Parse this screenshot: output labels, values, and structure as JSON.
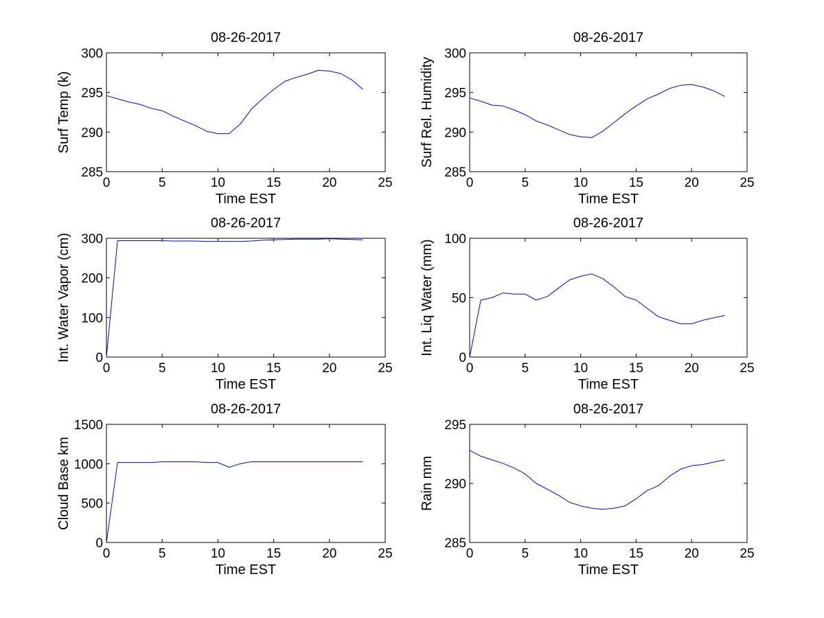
{
  "chart_data": [
    {
      "type": "line",
      "title": "08-26-2017",
      "xlabel": "Time EST",
      "ylabel": "Surf Temp (k)",
      "xlim": [
        0,
        25
      ],
      "ylim": [
        285,
        300
      ],
      "xticks": [
        0,
        5,
        10,
        15,
        20,
        25
      ],
      "yticks": [
        285,
        290,
        295,
        300
      ],
      "grid": false,
      "series": [
        {
          "color": "#0000ff",
          "x": [
            0,
            1,
            2,
            3,
            4,
            5,
            6,
            7,
            8,
            9,
            10,
            11,
            12,
            13,
            14,
            15,
            16,
            17,
            18,
            19,
            20,
            21,
            22,
            23
          ],
          "y": [
            294.6,
            294.2,
            293.8,
            293.5,
            293.0,
            292.7,
            292.0,
            291.4,
            290.8,
            290.1,
            289.8,
            289.8,
            291.0,
            292.9,
            294.2,
            295.4,
            296.4,
            296.9,
            297.3,
            297.8,
            297.7,
            297.4,
            296.6,
            295.4
          ]
        }
      ]
    },
    {
      "type": "line",
      "title": "08-26-2017",
      "xlabel": "Time EST",
      "ylabel": "Surf Rel. Humidity",
      "xlim": [
        0,
        25
      ],
      "ylim": [
        285,
        300
      ],
      "xticks": [
        0,
        5,
        10,
        15,
        20,
        25
      ],
      "yticks": [
        285,
        290,
        295,
        300
      ],
      "grid": false,
      "series": [
        {
          "color": "#0000ff",
          "x": [
            0,
            1,
            2,
            3,
            4,
            5,
            6,
            7,
            8,
            9,
            10,
            11,
            12,
            13,
            14,
            15,
            16,
            17,
            18,
            19,
            20,
            21,
            22,
            23
          ],
          "y": [
            294.3,
            293.9,
            293.4,
            293.3,
            292.8,
            292.2,
            291.4,
            290.9,
            290.3,
            289.7,
            289.4,
            289.3,
            290.1,
            291.2,
            292.3,
            293.3,
            294.2,
            294.8,
            295.5,
            295.9,
            296.0,
            295.7,
            295.2,
            294.5
          ]
        }
      ]
    },
    {
      "type": "line",
      "title": "08-26-2017",
      "xlabel": "Time EST",
      "ylabel": "Int. Water Vapor (cm)",
      "xlim": [
        0,
        25
      ],
      "ylim": [
        0,
        300
      ],
      "xticks": [
        0,
        5,
        10,
        15,
        20,
        25
      ],
      "yticks": [
        0,
        100,
        200,
        300
      ],
      "grid": false,
      "series": [
        {
          "color": "#0000ff",
          "x": [
            0,
            1,
            2,
            3,
            4,
            5,
            6,
            7,
            8,
            9,
            10,
            11,
            12,
            13,
            14,
            15,
            16,
            17,
            18,
            19,
            20,
            21,
            22,
            23
          ],
          "y": [
            0,
            294,
            294,
            294,
            294,
            294,
            293,
            293,
            293,
            292,
            292,
            292,
            292,
            293,
            295,
            296,
            297,
            298,
            298,
            298,
            299,
            298,
            297,
            296
          ]
        }
      ]
    },
    {
      "type": "line",
      "title": "08-26-2017",
      "xlabel": "Time EST",
      "ylabel": "Int. Liq Water (mm)",
      "xlim": [
        0,
        25
      ],
      "ylim": [
        0,
        100
      ],
      "xticks": [
        0,
        5,
        10,
        15,
        20,
        25
      ],
      "yticks": [
        0,
        50,
        100
      ],
      "grid": false,
      "series": [
        {
          "color": "#0000ff",
          "x": [
            0,
            1,
            2,
            3,
            4,
            5,
            6,
            7,
            8,
            9,
            10,
            11,
            12,
            13,
            14,
            15,
            16,
            17,
            18,
            19,
            20,
            21,
            22,
            23
          ],
          "y": [
            0,
            48,
            50,
            54,
            53,
            53,
            48,
            51,
            58,
            65,
            68,
            70,
            66,
            59,
            51,
            48,
            41,
            34,
            31,
            28,
            28,
            31,
            33,
            35
          ]
        }
      ]
    },
    {
      "type": "line",
      "title": "08-26-2017",
      "xlabel": "Time EST",
      "ylabel": "Cloud Base km",
      "xlim": [
        0,
        25
      ],
      "ylim": [
        0,
        1500
      ],
      "xticks": [
        0,
        5,
        10,
        15,
        20,
        25
      ],
      "yticks": [
        0,
        500,
        1000,
        1500
      ],
      "grid": false,
      "series": [
        {
          "color": "#0000ff",
          "x": [
            0,
            1,
            2,
            3,
            4,
            5,
            6,
            7,
            8,
            9,
            10,
            11,
            12,
            13,
            14,
            15,
            16,
            17,
            18,
            19,
            20,
            21,
            22,
            23
          ],
          "y": [
            0,
            1015,
            1015,
            1015,
            1015,
            1025,
            1025,
            1025,
            1025,
            1015,
            1015,
            955,
            1000,
            1025,
            1025,
            1025,
            1025,
            1025,
            1025,
            1025,
            1025,
            1025,
            1025,
            1025
          ]
        }
      ]
    },
    {
      "type": "line",
      "title": "08-26-2017",
      "xlabel": "Time EST",
      "ylabel": "Rain mm",
      "xlim": [
        0,
        25
      ],
      "ylim": [
        285,
        295
      ],
      "xticks": [
        0,
        5,
        10,
        15,
        20,
        25
      ],
      "yticks": [
        285,
        290,
        295
      ],
      "grid": false,
      "series": [
        {
          "color": "#0000ff",
          "x": [
            0,
            1,
            2,
            3,
            4,
            5,
            6,
            7,
            8,
            9,
            10,
            11,
            12,
            13,
            14,
            15,
            16,
            17,
            18,
            19,
            20,
            21,
            22,
            23
          ],
          "y": [
            292.8,
            292.3,
            292.0,
            291.7,
            291.3,
            290.8,
            290.0,
            289.5,
            289.0,
            288.4,
            288.1,
            287.9,
            287.8,
            287.9,
            288.1,
            288.7,
            289.4,
            289.8,
            290.6,
            291.2,
            291.5,
            291.6,
            291.8,
            292.0
          ]
        }
      ]
    }
  ]
}
